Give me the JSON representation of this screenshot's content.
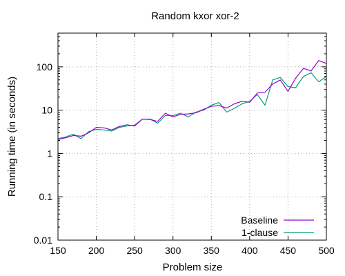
{
  "chart_data": {
    "type": "line",
    "title": "Random kxor xor-2",
    "xlabel": "Problem size",
    "ylabel": "Running time (in seconds)",
    "xlim": [
      150,
      500
    ],
    "ylim": [
      0.01,
      600
    ],
    "yscale": "log",
    "grid": true,
    "legend_position": "bottom-right",
    "xticks": [
      150,
      200,
      250,
      300,
      350,
      400,
      450,
      500
    ],
    "xtick_labels": [
      "150",
      "200",
      "250",
      "300",
      "350",
      "400",
      "450",
      "500"
    ],
    "yticks": [
      0.01,
      0.1,
      1,
      10,
      100
    ],
    "ytick_labels": [
      "0.01",
      "0.1",
      "1",
      "10",
      "100"
    ],
    "x": [
      150,
      160,
      170,
      180,
      190,
      200,
      210,
      220,
      230,
      240,
      250,
      260,
      270,
      280,
      290,
      300,
      310,
      320,
      330,
      340,
      350,
      360,
      370,
      380,
      390,
      400,
      410,
      420,
      430,
      440,
      450,
      460,
      470,
      480,
      490,
      500
    ],
    "series": [
      {
        "name": "Baseline",
        "color": "#9400d3",
        "values": [
          2.1,
          2.3,
          2.6,
          2.5,
          3.0,
          4.0,
          3.9,
          3.5,
          4.2,
          4.6,
          4.3,
          6.2,
          6.1,
          5.5,
          8.5,
          7.0,
          8.0,
          8.2,
          8.7,
          10.5,
          12.2,
          12.8,
          11.2,
          14.0,
          16.0,
          15.2,
          25.0,
          26.0,
          40.0,
          50.0,
          27.0,
          55.0,
          92.0,
          80.0,
          140.0,
          120.0
        ]
      },
      {
        "name": "1-clause",
        "color": "#009e73",
        "values": [
          2.2,
          2.4,
          2.8,
          2.2,
          3.2,
          3.6,
          3.5,
          3.3,
          4.0,
          4.3,
          4.5,
          6.2,
          6.2,
          5.0,
          7.5,
          7.5,
          8.5,
          7.0,
          9.0,
          10.0,
          13.0,
          15.0,
          9.0,
          11.0,
          14.0,
          16.0,
          23.0,
          13.0,
          50.0,
          57.0,
          35.0,
          33.0,
          60.0,
          73.0,
          45.0,
          60.0
        ]
      }
    ]
  }
}
